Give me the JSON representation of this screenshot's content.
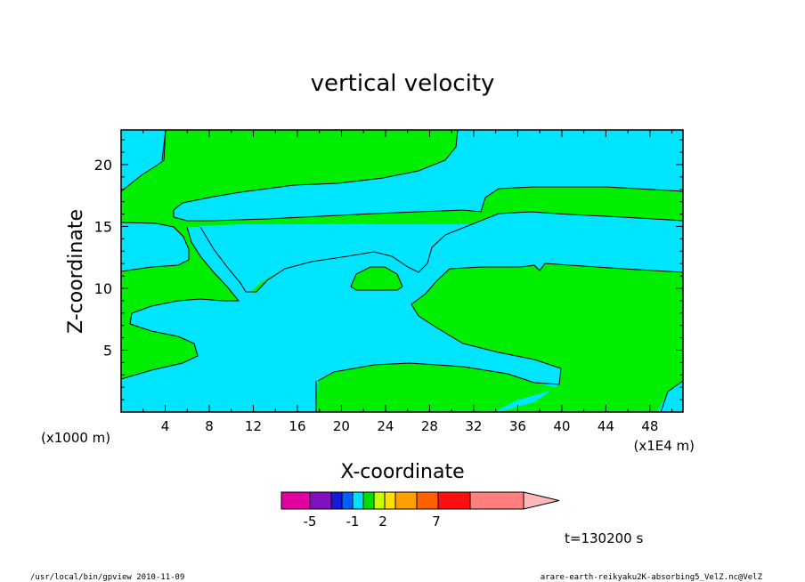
{
  "chart_data": {
    "type": "heatmap",
    "title": "vertical velocity",
    "xlabel": "X-coordinate",
    "ylabel": "Z-coordinate",
    "x_unit_left": "(x1000 m)",
    "x_unit_right": "(x1E4 m)",
    "xlim": [
      0,
      51
    ],
    "ylim": [
      0,
      22.8
    ],
    "x_ticks": [
      "4",
      "8",
      "12",
      "16",
      "20",
      "24",
      "28",
      "32",
      "36",
      "40",
      "44",
      "48"
    ],
    "y_ticks": [
      "5",
      "10",
      "15",
      "20"
    ],
    "time_label": "t=130200 s",
    "colorbar": {
      "tick_labels": [
        "-5",
        "-1",
        "2",
        "7"
      ],
      "tick_values": [
        -5,
        -1,
        2,
        7
      ],
      "colors": [
        "#e000a0",
        "#8010c0",
        "#1818d8",
        "#0060ff",
        "#00e0ff",
        "#00e000",
        "#c8ff00",
        "#ffe000",
        "#ffa000",
        "#ff6000",
        "#ff1010",
        "#ff7f7f",
        "#ffb8b8"
      ]
    },
    "regions": [
      {
        "name": "positive",
        "color": "#00ee00"
      },
      {
        "name": "negative",
        "color": "#00e5ff"
      }
    ]
  },
  "footer": {
    "left": "/usr/local/bin/gpview  2010-11-09",
    "right": "arare-earth-reikyaku2K-absorbing5_VelZ.nc@VelZ"
  }
}
